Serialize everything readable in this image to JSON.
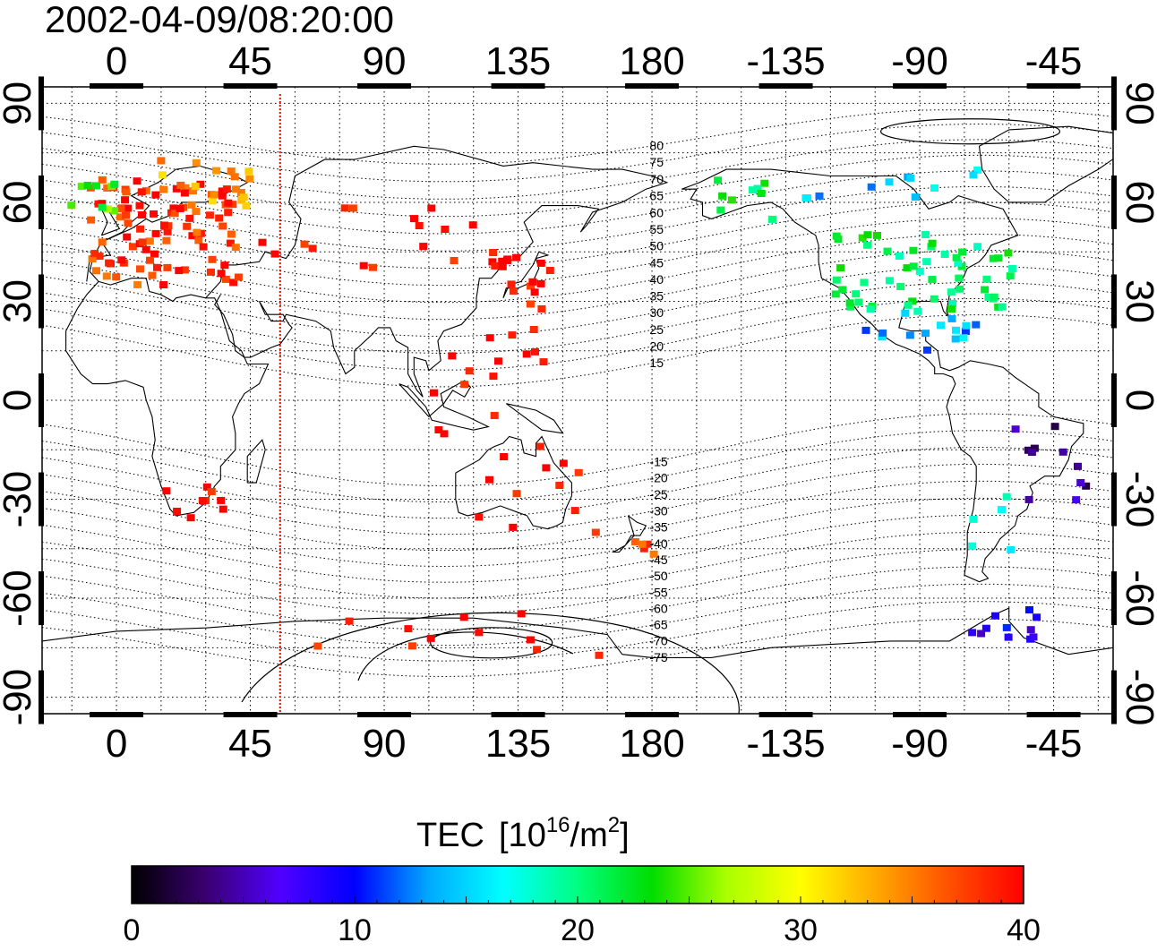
{
  "header": {
    "timestamp": "2002-04-09/08:20:00"
  },
  "map": {
    "top_lon_labels": [
      "0",
      "45",
      "90",
      "135",
      "180",
      "-135",
      "-90",
      "-45"
    ],
    "bottom_lon_labels": [
      "0",
      "45",
      "90",
      "135",
      "180",
      "-135",
      "-90",
      "-45"
    ],
    "left_lat_labels": [
      "90",
      "60",
      "30",
      "0",
      "-30",
      "-60",
      "-90"
    ],
    "right_lat_labels": [
      "90",
      "60",
      "30",
      "0",
      "-30",
      "-60",
      "-90"
    ],
    "lon_ticks": [
      0,
      45,
      90,
      135,
      180,
      225,
      270,
      315
    ],
    "lat_ticks": [
      90,
      60,
      30,
      0,
      -30,
      -60,
      -90
    ],
    "lon_range": [
      -25,
      335
    ],
    "lat_range": [
      -95,
      95
    ],
    "grid": "dotted",
    "marker_meridian_lon": 55,
    "marker_color": "#ff0000",
    "contour_labels": [
      "80",
      "75",
      "70",
      "65",
      "60",
      "55",
      "50",
      "45",
      "40",
      "35",
      "30",
      "25",
      "20",
      "15",
      "-15",
      "-20",
      "-25",
      "-30",
      "-35",
      "-40",
      "-45",
      "-50",
      "-55",
      "-60",
      "-65",
      "-70",
      "-75"
    ]
  },
  "colorbar": {
    "title": "TEC",
    "unit_prefix": "[10",
    "unit_exp1": "16",
    "unit_mid": "/m",
    "unit_exp2": "2",
    "unit_suffix": "]",
    "tick_labels": [
      "0",
      "10",
      "20",
      "30",
      "40"
    ],
    "range": [
      0,
      40
    ],
    "colors": [
      "#000000",
      "#3a0070",
      "#5000ff",
      "#0000ff",
      "#00aaff",
      "#00ffff",
      "#00ff80",
      "#00dd00",
      "#aaff00",
      "#ffff00",
      "#ffaa00",
      "#ff5000",
      "#ff0000"
    ]
  }
}
